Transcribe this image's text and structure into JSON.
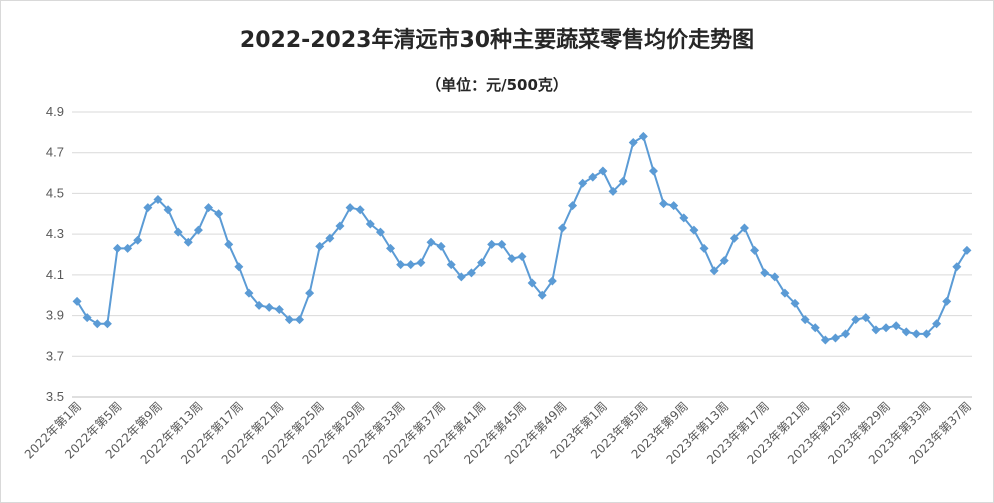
{
  "chart_data": {
    "type": "line",
    "title": "2022-2023年清远市30种主要蔬菜零售均价走势图",
    "subtitle": "（单位：元/500克）",
    "ylim": [
      3.5,
      4.9
    ],
    "yticks": [
      "3.5",
      "3.7",
      "3.9",
      "4.1",
      "4.3",
      "4.5",
      "4.7",
      "4.9"
    ],
    "grid": "horizontal",
    "legend": "none",
    "x_labels": [
      "2022年第1周",
      "2022年第5周",
      "2022年第9周",
      "2022年第13周",
      "2022年第17周",
      "2022年第21周",
      "2022年第25周",
      "2022年第29周",
      "2022年第33周",
      "2022年第37周",
      "2022年第41周",
      "2022年第45周",
      "2022年第49周",
      "2023年第1周",
      "2023年第5周",
      "2023年第9周",
      "2023年第13周",
      "2023年第17周",
      "2023年第21周",
      "2023年第25周",
      "2023年第29周",
      "2023年第33周",
      "2023年第37周"
    ],
    "series": [
      {
        "color": "#5b9bd5",
        "values": [
          3.97,
          3.89,
          3.86,
          3.86,
          4.23,
          4.23,
          4.27,
          4.43,
          4.47,
          4.42,
          4.31,
          4.26,
          4.32,
          4.43,
          4.4,
          4.25,
          4.14,
          4.01,
          3.95,
          3.94,
          3.93,
          3.88,
          3.88,
          4.01,
          4.24,
          4.28,
          4.34,
          4.43,
          4.42,
          4.35,
          4.31,
          4.23,
          4.15,
          4.15,
          4.16,
          4.26,
          4.24,
          4.15,
          4.09,
          4.11,
          4.16,
          4.25,
          4.25,
          4.18,
          4.19,
          4.06,
          4.0,
          4.07,
          4.33,
          4.44,
          4.55,
          4.58,
          4.61,
          4.51,
          4.56,
          4.75,
          4.78,
          4.61,
          4.45,
          4.44,
          4.38,
          4.32,
          4.23,
          4.12,
          4.17,
          4.28,
          4.33,
          4.22,
          4.11,
          4.09,
          4.01,
          3.96,
          3.88,
          3.84,
          3.78,
          3.79,
          3.81,
          3.88,
          3.89,
          3.83,
          3.84,
          3.85,
          3.82,
          3.81,
          3.81,
          3.86,
          3.97,
          4.14,
          4.22
        ]
      }
    ]
  }
}
